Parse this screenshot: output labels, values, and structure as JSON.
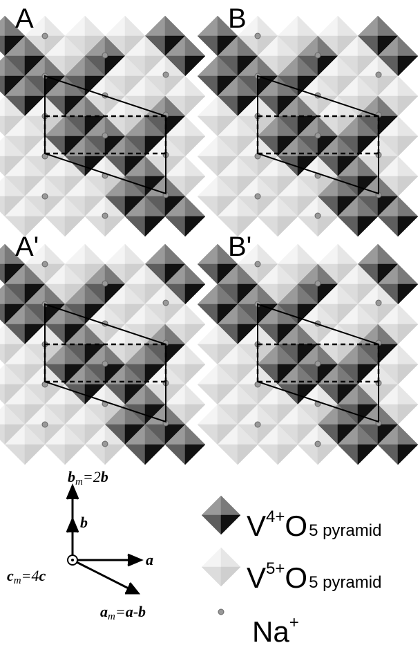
{
  "panels": [
    {
      "label": "A"
    },
    {
      "label": "B"
    },
    {
      "label": "A'"
    },
    {
      "label": "B'"
    }
  ],
  "axes": {
    "bm": {
      "vector": "b",
      "sub": "m",
      "eq": "=2",
      "rhs": "b"
    },
    "b": {
      "vector": "b"
    },
    "a": {
      "vector": "a"
    },
    "cm": {
      "vector": "c",
      "sub": "m",
      "eq": "=4",
      "rhs": "c"
    },
    "am": {
      "vector": "a",
      "sub": "m",
      "eq": "=",
      "rhs1": "a",
      "minus": "-",
      "rhs2": "b"
    }
  },
  "legend": [
    {
      "element": "V",
      "charge": "4+",
      "ligand": "O",
      "subscript": "5 pyramid"
    },
    {
      "element": "V",
      "charge": "5+",
      "ligand": "O",
      "subscript": "5 pyramid"
    },
    {
      "element": "Na",
      "charge": "+"
    }
  ]
}
